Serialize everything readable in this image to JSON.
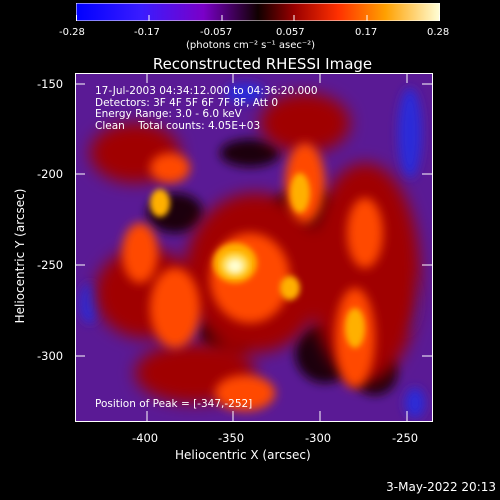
{
  "colorbar": {
    "ticks": [
      "-0.28",
      "-0.17",
      "-0.057",
      "0.057",
      "0.17",
      "0.28"
    ],
    "unit_label": "(photons cm⁻² s⁻¹ asec⁻²)"
  },
  "title": "Reconstructed RHESSI Image",
  "info": {
    "time_range": "17-Jul-2003 04:34:12.000 to 04:36:20.000",
    "detectors": "Detectors: 3F 4F 5F 6F 7F 8F, Att 0",
    "energy": "Energy Range: 3.0 - 6.0 keV",
    "method_counts": "Clean    Total counts: 4.05E+03"
  },
  "peak_label": "Position of Peak = [-347,-252]",
  "x_axis": {
    "label": "Heliocentric X (arcsec)",
    "ticks": [
      "-400",
      "-350",
      "-300",
      "-250"
    ]
  },
  "y_axis": {
    "label": "Heliocentric Y (arcsec)",
    "ticks": [
      "-150",
      "-200",
      "-250",
      "-300"
    ]
  },
  "footer_date": "3-May-2022 20:13"
}
